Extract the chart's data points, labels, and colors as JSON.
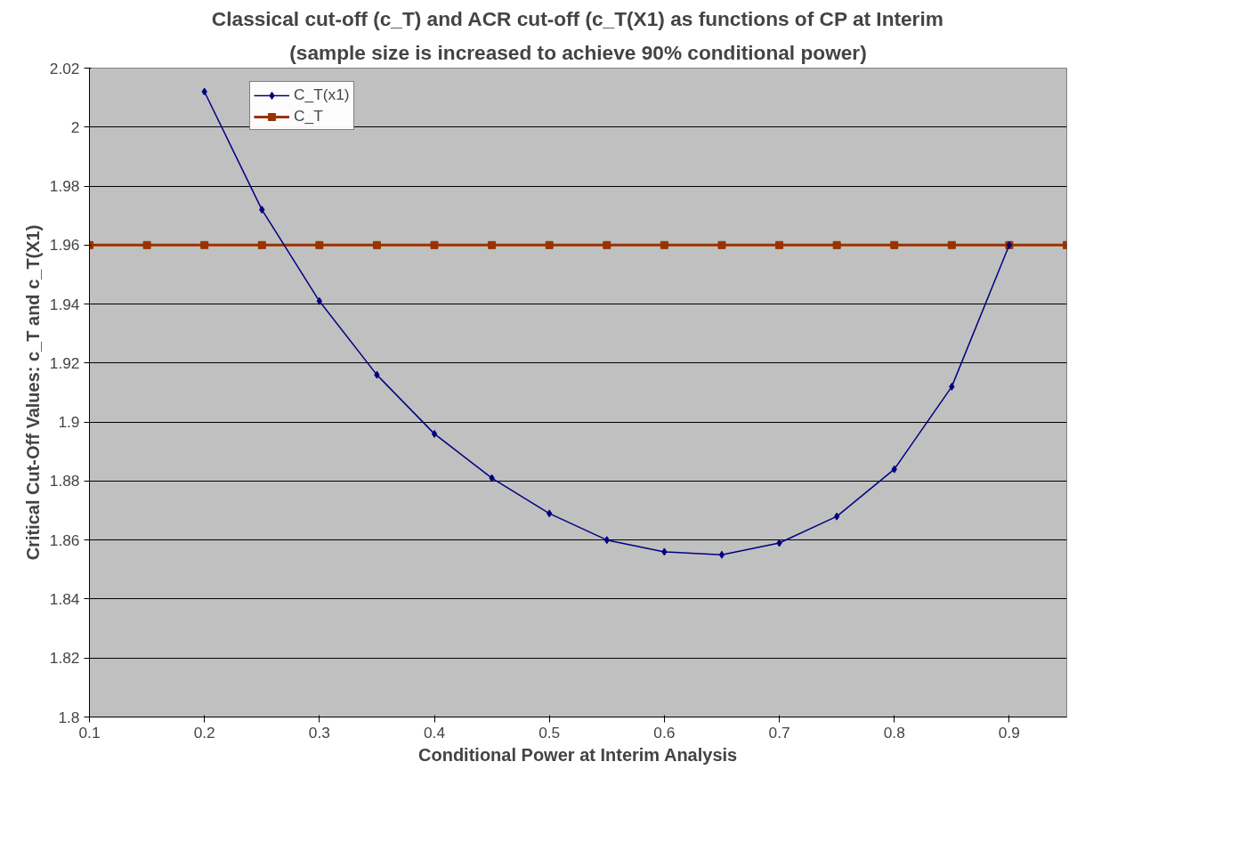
{
  "chart_data": {
    "type": "line",
    "title": "Classical cut-off (c_T) and ACR cut-off (c_T(X1) as functions of CP at Interim",
    "subtitle": "(sample size is increased to achieve 90% conditional power)",
    "xlabel": "Conditional Power at Interim Analysis",
    "ylabel": "Critical Cut-Off Values: c_T and c_T(X1)",
    "series": [
      {
        "name": "C_T(x1)",
        "color": "#000080",
        "marker": "diamond",
        "x": [
          0.2,
          0.25,
          0.3,
          0.35,
          0.4,
          0.45,
          0.5,
          0.55,
          0.6,
          0.65,
          0.7,
          0.75,
          0.8,
          0.85,
          0.9
        ],
        "values": [
          2.012,
          1.972,
          1.941,
          1.916,
          1.896,
          1.881,
          1.869,
          1.86,
          1.856,
          1.855,
          1.859,
          1.868,
          1.884,
          1.912,
          1.96
        ]
      },
      {
        "name": "C_T",
        "color": "#993300",
        "marker": "square",
        "x": [
          0.1,
          0.15,
          0.2,
          0.25,
          0.3,
          0.35,
          0.4,
          0.45,
          0.5,
          0.55,
          0.6,
          0.65,
          0.7,
          0.75,
          0.8,
          0.85,
          0.9,
          0.95
        ],
        "values": [
          1.96,
          1.96,
          1.96,
          1.96,
          1.96,
          1.96,
          1.96,
          1.96,
          1.96,
          1.96,
          1.96,
          1.96,
          1.96,
          1.96,
          1.96,
          1.96,
          1.96,
          1.96
        ]
      }
    ],
    "xlim": [
      0.1,
      0.95
    ],
    "xticks": [
      0.1,
      0.2,
      0.3,
      0.4,
      0.5,
      0.6,
      0.7,
      0.8,
      0.9
    ],
    "ylim": [
      1.8,
      2.02
    ],
    "yticks": [
      1.8,
      1.82,
      1.84,
      1.86,
      1.88,
      1.9,
      1.92,
      1.94,
      1.96,
      1.98,
      2,
      2.02
    ],
    "grid": "y",
    "legend": "top left",
    "line_style": "solid"
  }
}
